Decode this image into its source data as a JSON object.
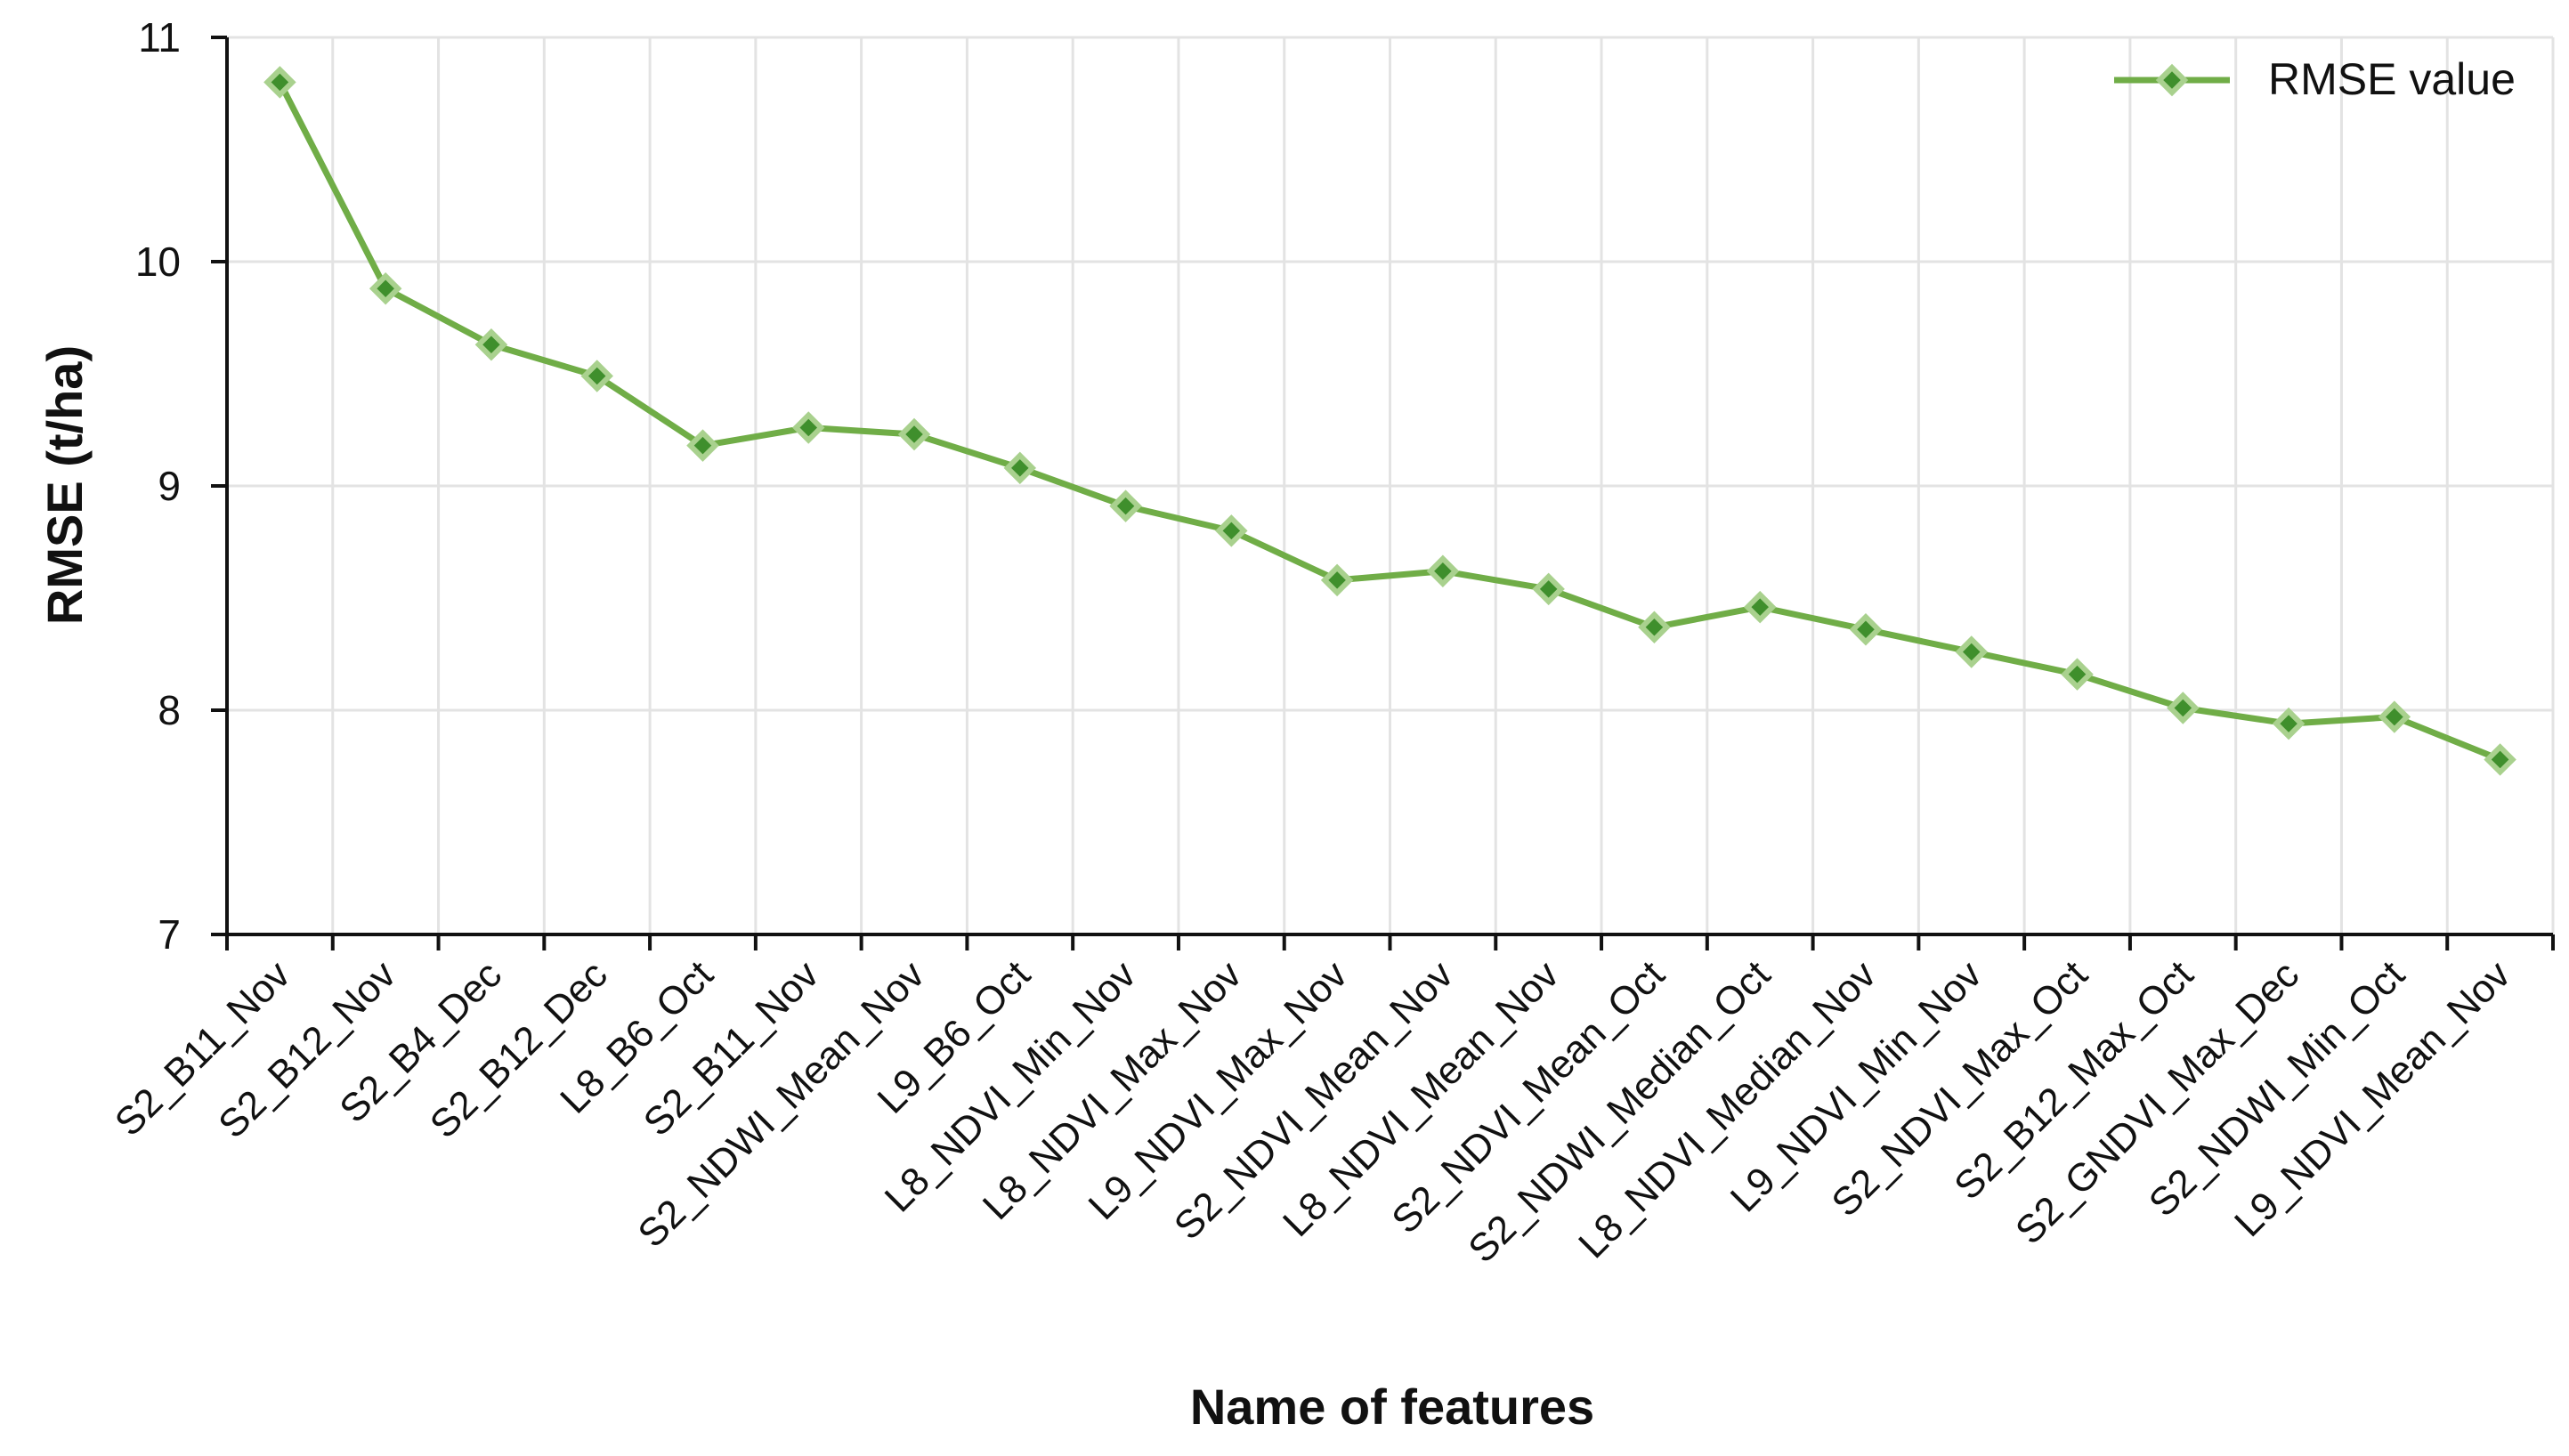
{
  "chart_data": {
    "type": "line",
    "title": "",
    "xlabel": "Name of features",
    "ylabel": "RMSE (t/ha)",
    "ylim": [
      7,
      11
    ],
    "yticks": [
      7,
      8,
      9,
      10,
      11
    ],
    "grid": true,
    "legend_position": "top-right",
    "categories": [
      "S2_B11_Nov",
      "S2_B12_Nov",
      "S2_B4_Dec",
      "S2_B12_Dec",
      "L8_B6_Oct",
      "S2_B11_Nov",
      "S2_NDWI_Mean_Nov",
      "L9_B6_Oct",
      "L8_NDVI_Min_Nov",
      "L8_NDVI_Max_Nov",
      "L9_NDVI_Max_Nov",
      "S2_NDVI_Mean_Nov",
      "L8_NDVI_Mean_Nov",
      "S2_NDVI_Mean_Oct",
      "S2_NDWI_Median_Oct",
      "L8_NDVI_Median_Nov",
      "L9_NDVI_Min_Nov",
      "S2_NDVI_Max_Oct",
      "S2_B12_Max_Oct",
      "S2_GNDVI_Max_Dec",
      "S2_NDWI_Min_Oct",
      "L9_NDVI_Mean_Nov"
    ],
    "series": [
      {
        "name": "RMSE value",
        "color": "#70ad47",
        "marker": "diamond",
        "values": [
          10.8,
          9.88,
          9.63,
          9.49,
          9.18,
          9.26,
          9.23,
          9.08,
          8.91,
          8.8,
          8.58,
          8.62,
          8.54,
          8.37,
          8.46,
          8.36,
          8.26,
          8.16,
          8.01,
          7.94,
          7.97,
          7.78
        ]
      }
    ]
  }
}
